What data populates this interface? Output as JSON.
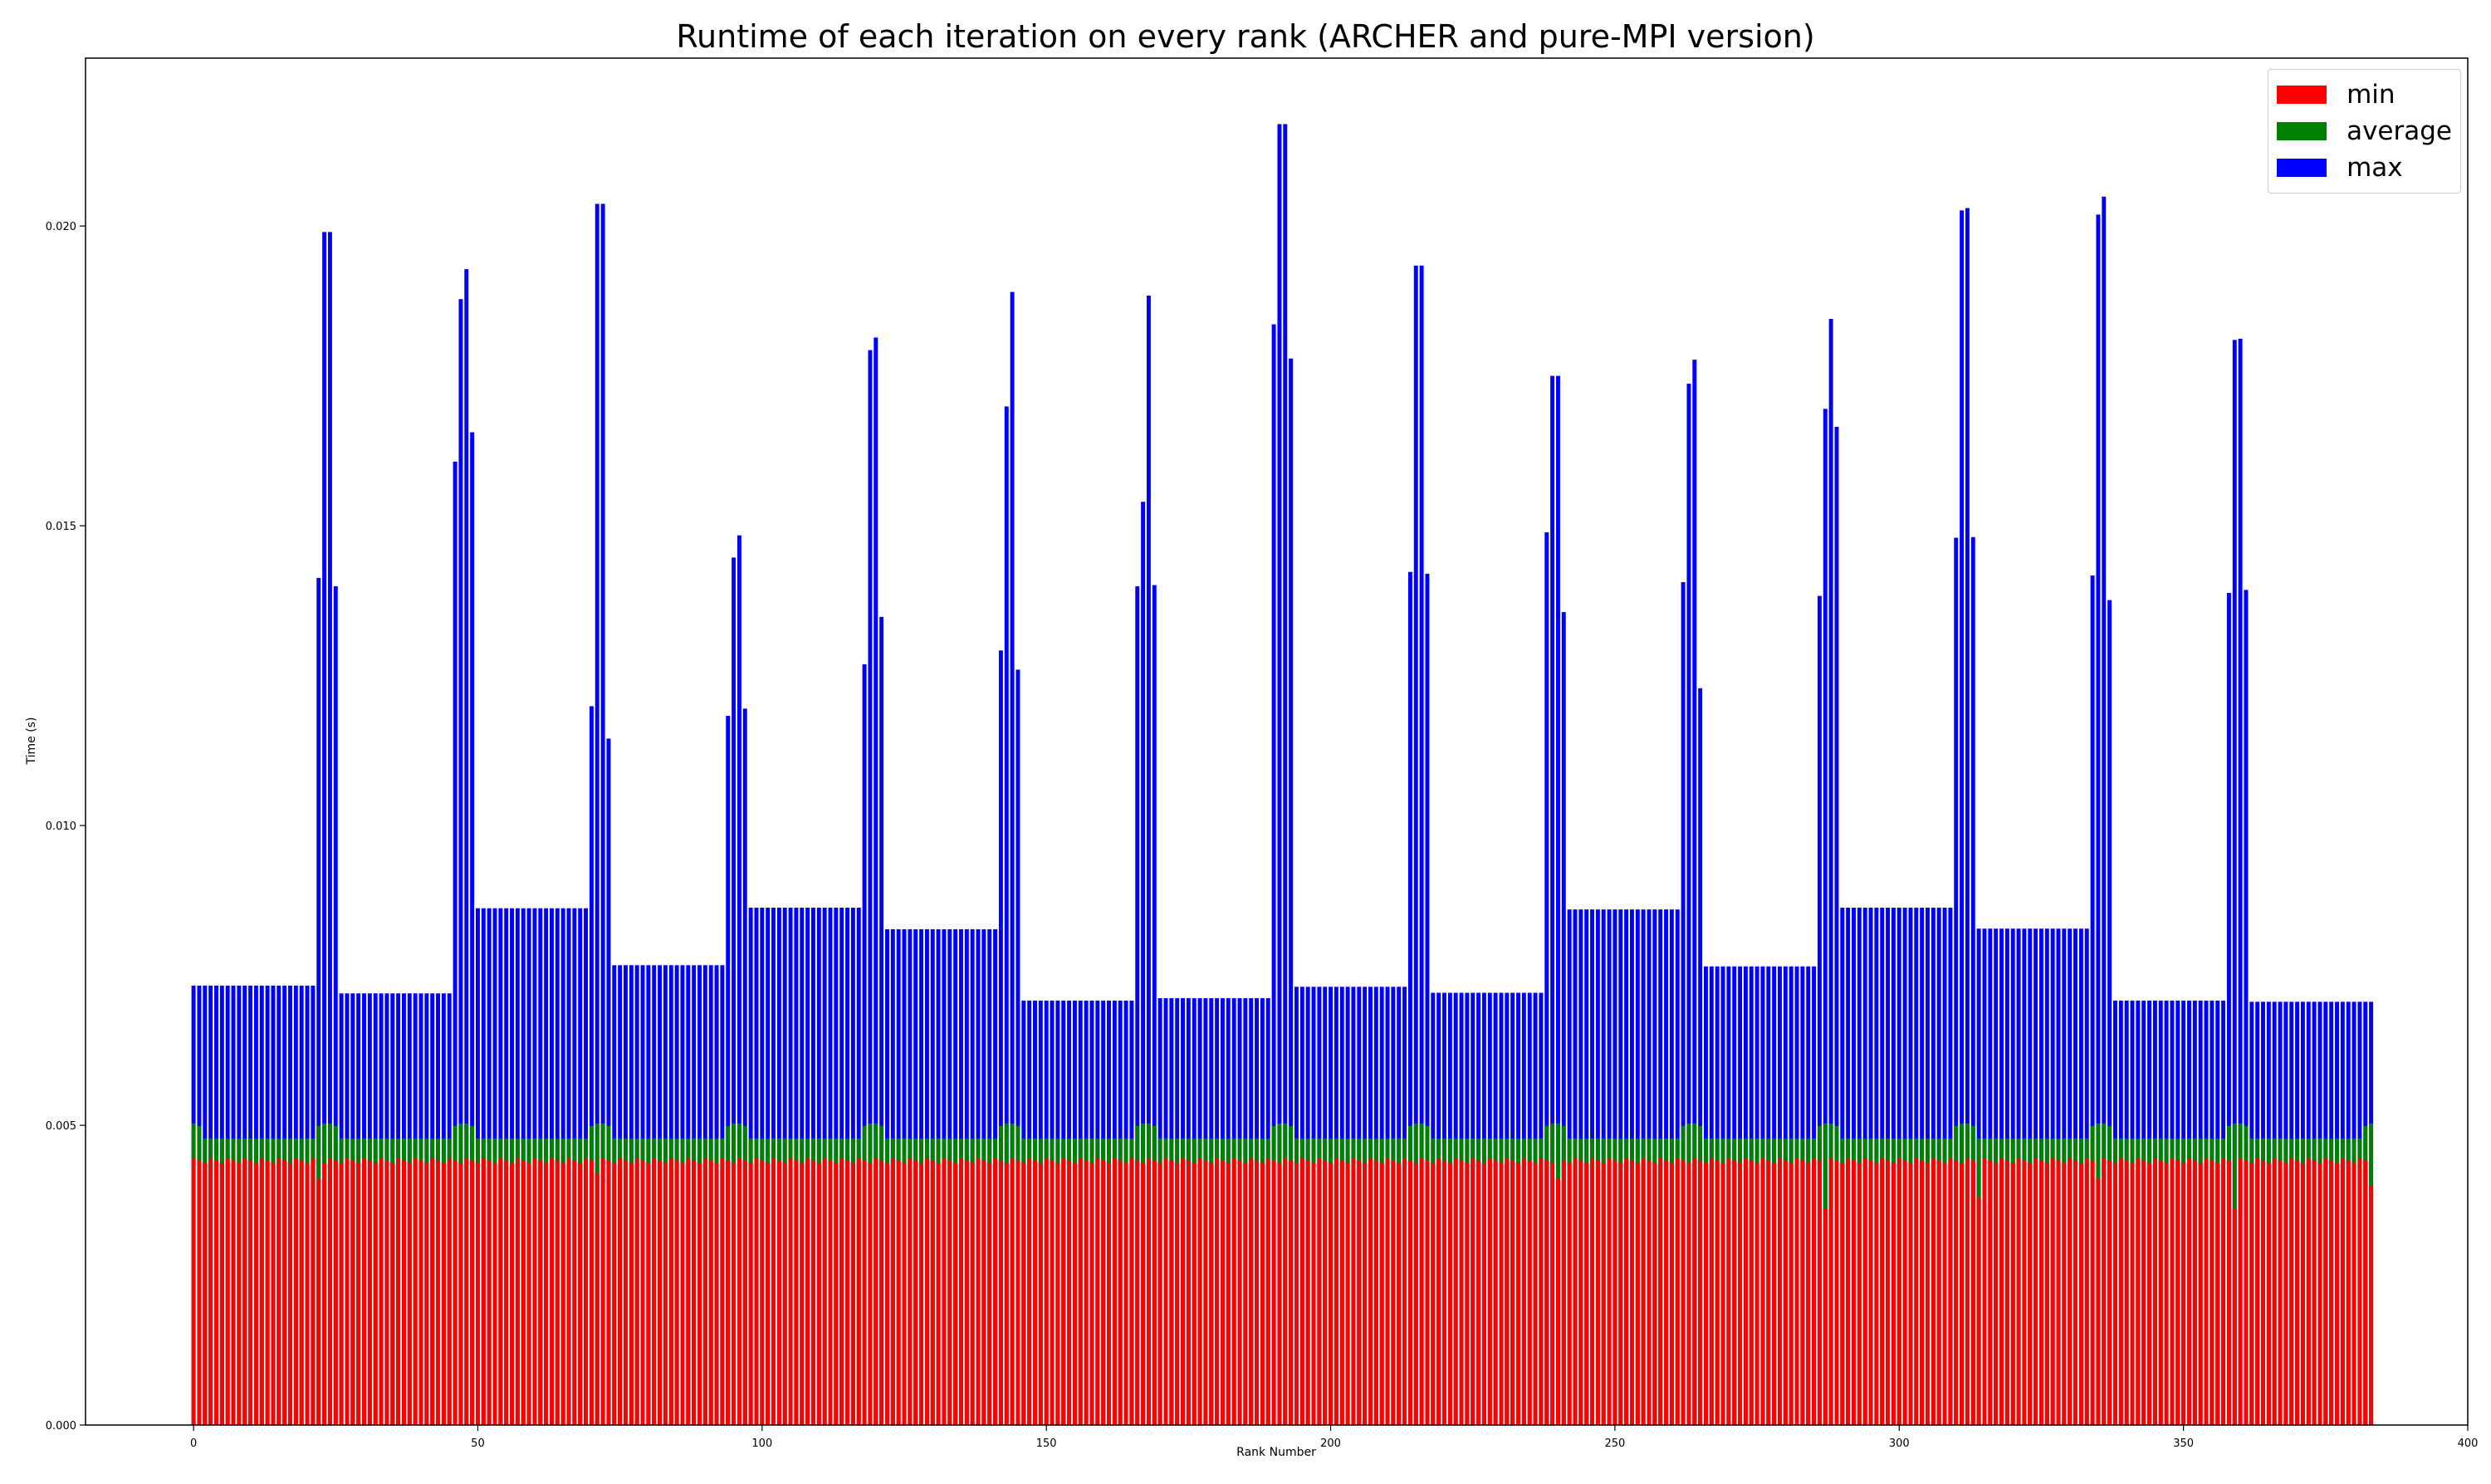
{
  "chart_data": {
    "type": "bar",
    "title": "Runtime of each iteration on every rank (ARCHER and pure-MPI version)",
    "xlabel": "Rank Number",
    "ylabel": "Time (s)",
    "xlim": [
      -19,
      400
    ],
    "ylim": [
      0.0,
      0.0228
    ],
    "xticks": [
      0,
      50,
      100,
      150,
      200,
      250,
      300,
      350,
      400
    ],
    "yticks": [
      0.0,
      0.005,
      0.01,
      0.015,
      0.02
    ],
    "ytick_labels": [
      "0.000",
      "0.005",
      "0.010",
      "0.015",
      "0.020"
    ],
    "grid": false,
    "legend_position": "top-right",
    "num_ranks": 384,
    "series": [
      {
        "name": "min",
        "color": "#ff0000",
        "profile": {
          "base": 0.00445,
          "dips": [
            [
              22,
              0.0041
            ],
            [
              71,
              0.0042
            ],
            [
              240,
              0.0041
            ],
            [
              287,
              0.0036
            ],
            [
              314,
              0.0038
            ],
            [
              335,
              0.0041
            ],
            [
              359,
              0.0036
            ]
          ]
        }
      },
      {
        "name": "average",
        "color": "#008000",
        "profile": {
          "base": 0.00478,
          "node_peak": 0.00505
        }
      },
      {
        "name": "max",
        "color": "#0000ff",
        "group_base_values": [
          0.00733,
          0.0072,
          0.00862,
          0.00767,
          0.00863,
          0.00827,
          0.00708,
          0.00712,
          0.00731,
          0.00721,
          0.0086,
          0.00765,
          0.00863,
          0.00828,
          0.00708,
          0.00706
        ],
        "spikes": [
          [
            [
              22,
              0.01413
            ],
            [
              23,
              0.0199
            ],
            [
              24,
              0.0199
            ],
            [
              25,
              0.01399
            ]
          ],
          [
            [
              46,
              0.01607
            ],
            [
              47,
              0.01878
            ],
            [
              48,
              0.01928
            ],
            [
              49,
              0.01656
            ]
          ],
          [
            [
              70,
              0.01199
            ],
            [
              71,
              0.02037
            ],
            [
              72,
              0.02037
            ],
            [
              73,
              0.01145
            ]
          ],
          [
            [
              94,
              0.01183
            ],
            [
              95,
              0.01447
            ],
            [
              96,
              0.01484
            ],
            [
              97,
              0.01195
            ]
          ],
          [
            [
              118,
              0.01269
            ],
            [
              119,
              0.01793
            ],
            [
              120,
              0.01814
            ],
            [
              121,
              0.01348
            ]
          ],
          [
            [
              142,
              0.01292
            ],
            [
              143,
              0.01699
            ],
            [
              144,
              0.0189
            ],
            [
              145,
              0.0126
            ]
          ],
          [
            [
              166,
              0.01399
            ],
            [
              167,
              0.0154
            ],
            [
              168,
              0.01884
            ],
            [
              169,
              0.01401
            ]
          ],
          [
            [
              190,
              0.01836
            ],
            [
              191,
              0.0217
            ],
            [
              192,
              0.0217
            ],
            [
              193,
              0.01779
            ]
          ],
          [
            [
              214,
              0.01423
            ],
            [
              215,
              0.01934
            ],
            [
              216,
              0.01934
            ],
            [
              217,
              0.0142
            ]
          ],
          [
            [
              238,
              0.01489
            ],
            [
              239,
              0.0175
            ],
            [
              240,
              0.0175
            ],
            [
              241,
              0.01356
            ]
          ],
          [
            [
              262,
              0.01406
            ],
            [
              263,
              0.01737
            ],
            [
              264,
              0.01777
            ],
            [
              265,
              0.01229
            ]
          ],
          [
            [
              286,
              0.01383
            ],
            [
              287,
              0.01695
            ],
            [
              288,
              0.01845
            ],
            [
              289,
              0.01665
            ]
          ],
          [
            [
              310,
              0.0148
            ],
            [
              311,
              0.02026
            ],
            [
              312,
              0.0203
            ],
            [
              313,
              0.01481
            ]
          ],
          [
            [
              334,
              0.01417
            ],
            [
              335,
              0.02019
            ],
            [
              336,
              0.02049
            ],
            [
              337,
              0.01376
            ]
          ],
          [
            [
              358,
              0.01388
            ],
            [
              359,
              0.0181
            ],
            [
              360,
              0.01812
            ],
            [
              361,
              0.01393
            ]
          ]
        ]
      }
    ]
  }
}
